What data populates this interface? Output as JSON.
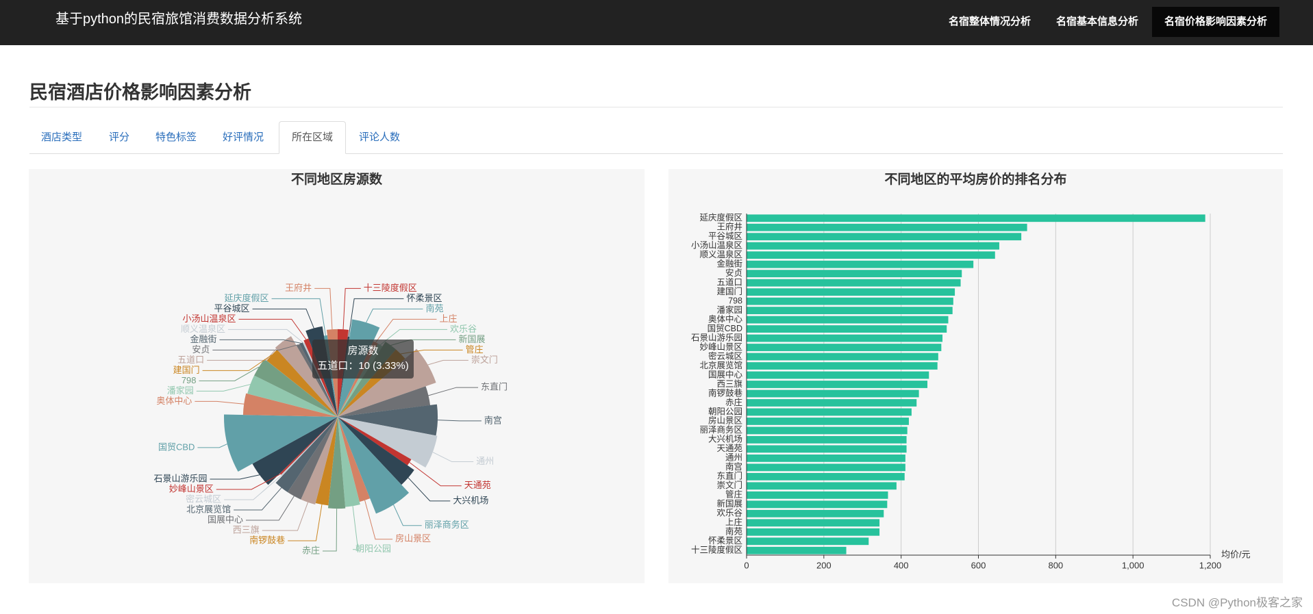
{
  "header": {
    "title": "基于python的民宿旅馆消费数据分析系统",
    "nav": [
      "名宿整体情况分析",
      "名宿基本信息分析",
      "名宿价格影响因素分析"
    ]
  },
  "page_title": "民宿酒店价格影响因素分析",
  "tabs": [
    "酒店类型",
    "评分",
    "特色标签",
    "好评情况",
    "所在区域",
    "评论人数"
  ],
  "chart_data": [
    {
      "type": "pie",
      "rose": true,
      "title": "不同地区房源数",
      "name": "房源数",
      "tooltip": "五道口：10 (3.33%)",
      "colors": [
        "#c23531",
        "#2f4554",
        "#61a0a8",
        "#d48265",
        "#91c7ae",
        "#749f83",
        "#ca8622",
        "#bda29a",
        "#6e7074",
        "#546570",
        "#c4ccd3"
      ],
      "categories": [
        "十三陵度假区",
        "怀柔景区",
        "南苑",
        "上庄",
        "欢乐谷",
        "新国展",
        "管庄",
        "崇文门",
        "东直门",
        "南宫",
        "通州",
        "天通苑",
        "大兴机场",
        "丽泽商务区",
        "房山景区",
        "朝阳公园",
        "赤庄",
        "南锣鼓巷",
        "西三旗",
        "国展中心",
        "北京展览馆",
        "密云城区",
        "妙峰山景区",
        "石景山游乐园",
        "国贸CBD",
        "奥体中心",
        "潘家园",
        "798",
        "建国门",
        "五道口",
        "安贞",
        "金融街",
        "顺义温泉区",
        "小汤山温泉区",
        "平谷城区",
        "延庆度假区",
        "王府井"
      ],
      "values": [
        6,
        1,
        14,
        3,
        3,
        7,
        7,
        18,
        10,
        15,
        16,
        4,
        10,
        18,
        6,
        8,
        9,
        7,
        8,
        8,
        8,
        1,
        1,
        13,
        25,
        11,
        10,
        10,
        8,
        10,
        2,
        2,
        1,
        3,
        9,
        2,
        6
      ]
    },
    {
      "type": "bar",
      "orientation": "horizontal",
      "title": "不同地区的平均房价的排名分布",
      "color": "#27c29c",
      "categories": [
        "延庆度假区",
        "王府井",
        "平谷城区",
        "小汤山温泉区",
        "顺义温泉区",
        "金融街",
        "安贞",
        "五道口",
        "建国门",
        "798",
        "潘家园",
        "奥体中心",
        "国贸CBD",
        "石景山游乐园",
        "妙峰山景区",
        "密云城区",
        "北京展览馆",
        "国展中心",
        "西三旗",
        "南锣鼓巷",
        "赤庄",
        "朝阳公园",
        "房山景区",
        "丽泽商务区",
        "大兴机场",
        "天通苑",
        "通州",
        "南宫",
        "东直门",
        "崇文门",
        "管庄",
        "新国展",
        "欢乐谷",
        "上庄",
        "南苑",
        "怀柔景区",
        "十三陵度假区"
      ],
      "values": [
        1187,
        726,
        711,
        654,
        643,
        587,
        557,
        554,
        539,
        535,
        533,
        522,
        518,
        507,
        504,
        496,
        494,
        472,
        468,
        446,
        440,
        427,
        420,
        416,
        414,
        414,
        411,
        411,
        409,
        388,
        366,
        364,
        355,
        344,
        344,
        316,
        258
      ],
      "xlim": [
        0,
        1200
      ],
      "xticks": [
        0,
        200,
        400,
        600,
        800,
        {
          "value": 1000,
          "label": "1,000"
        },
        {
          "value": 1200,
          "label": "1,200"
        }
      ],
      "x_label": "均价/元",
      "grid": true
    }
  ],
  "watermark": "CSDN @Python极客之家"
}
